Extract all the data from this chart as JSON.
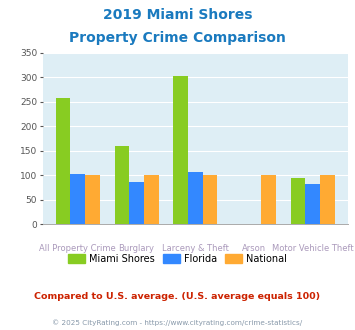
{
  "title_line1": "2019 Miami Shores",
  "title_line2": "Property Crime Comparison",
  "title_color": "#1a7abf",
  "categories": [
    "All Property Crime",
    "Burglary",
    "Larceny & Theft",
    "Arson",
    "Motor Vehicle Theft"
  ],
  "miami_shores": [
    258,
    160,
    302,
    0,
    95
  ],
  "florida": [
    103,
    87,
    107,
    0,
    82
  ],
  "national": [
    100,
    100,
    100,
    100,
    100
  ],
  "miami_shores_color": "#88cc22",
  "florida_color": "#3388ff",
  "national_color": "#ffaa33",
  "ylim": [
    0,
    350
  ],
  "yticks": [
    0,
    50,
    100,
    150,
    200,
    250,
    300,
    350
  ],
  "plot_bg": "#deeef5",
  "grid_color": "#ffffff",
  "footer_text": "Compared to U.S. average. (U.S. average equals 100)",
  "footer_color": "#cc2200",
  "copyright_text": "© 2025 CityRating.com - https://www.cityrating.com/crime-statistics/",
  "copyright_color": "#8899aa",
  "legend_labels": [
    "Miami Shores",
    "Florida",
    "National"
  ],
  "bar_width": 0.25,
  "label_top": [
    "",
    "Burglary",
    "",
    "Arson",
    ""
  ],
  "label_bot": [
    "All Property Crime",
    "",
    "Larceny & Theft",
    "",
    "Motor Vehicle Theft"
  ]
}
